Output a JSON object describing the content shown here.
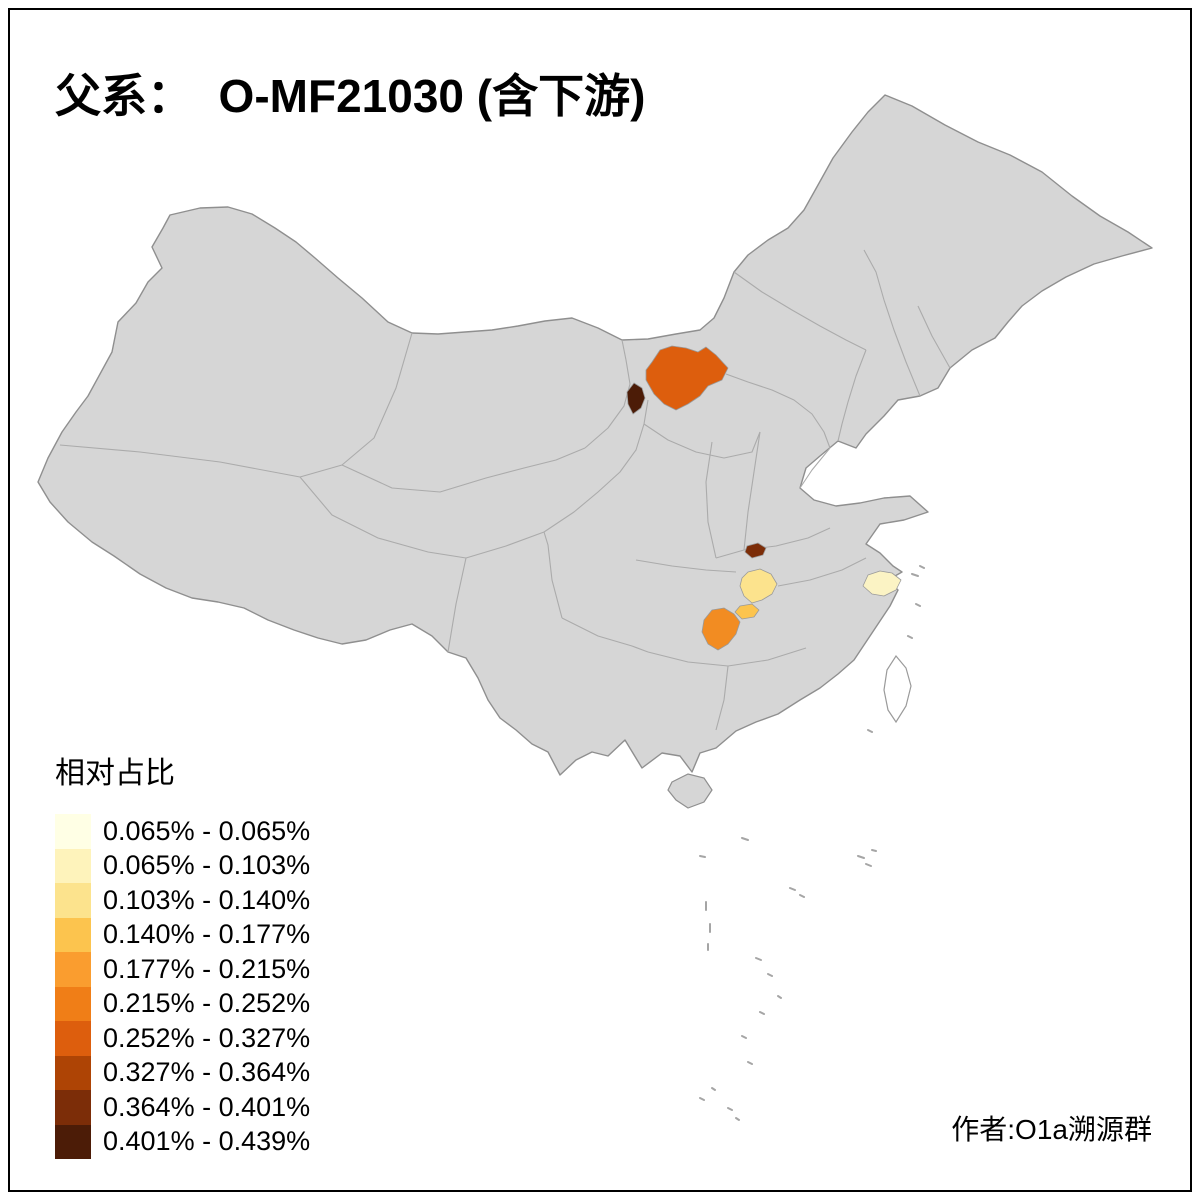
{
  "title": "父系：  O-MF21030 (含下游)",
  "legend": {
    "title": "相对占比",
    "items": [
      {
        "label": "0.065% - 0.065%",
        "color": "#FFFFE5"
      },
      {
        "label": "0.065% - 0.103%",
        "color": "#FEF3BB"
      },
      {
        "label": "0.103% - 0.140%",
        "color": "#FCE38D"
      },
      {
        "label": "0.140% - 0.177%",
        "color": "#FCC44E"
      },
      {
        "label": "0.177% - 0.215%",
        "color": "#FA9D2F"
      },
      {
        "label": "0.215% - 0.252%",
        "color": "#F07E17"
      },
      {
        "label": "0.252% - 0.327%",
        "color": "#DD5E0D"
      },
      {
        "label": "0.327% - 0.364%",
        "color": "#AE4405"
      },
      {
        "label": "0.364% - 0.401%",
        "color": "#7C2D08"
      },
      {
        "label": "0.401% - 0.439%",
        "color": "#4C1C07"
      }
    ]
  },
  "attribution": "作者:O1a溯源群",
  "map": {
    "base_fill": "#D6D6D6",
    "border_color": "#8F8F8F",
    "highlights": [
      {
        "color": "#DD5E0D"
      },
      {
        "color": "#4C1C07"
      },
      {
        "color": "#7C2D08"
      },
      {
        "color": "#FCE38D"
      },
      {
        "color": "#FCC44E"
      },
      {
        "color": "#F28C22"
      },
      {
        "color": "#FBF3C4"
      }
    ]
  }
}
